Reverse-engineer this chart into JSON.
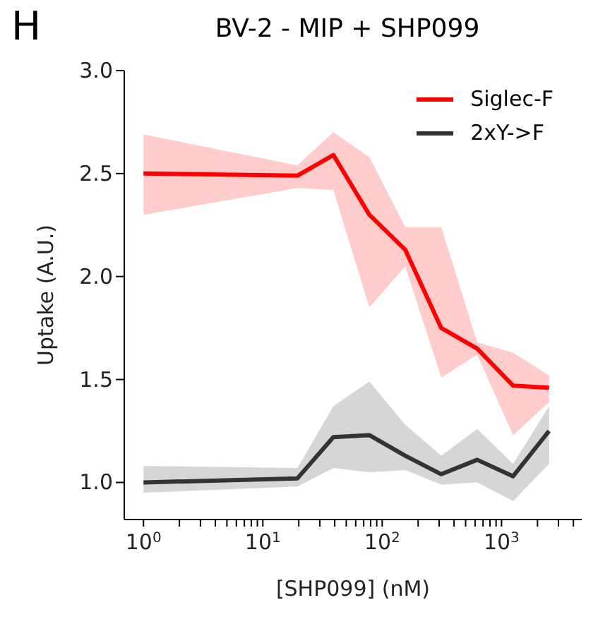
{
  "chart_data": {
    "type": "line",
    "title": "BV-2 - MIP + SHP099",
    "xlabel": "[SHP099] (nM)",
    "ylabel": "Uptake (A.U.)",
    "annotations": [
      "H"
    ],
    "x": [
      1,
      19.5,
      39,
      78,
      156,
      312.5,
      625,
      1250,
      2500
    ],
    "series": [
      {
        "name": "Siglec-F",
        "color": "#ff0000",
        "values": [
          2.5,
          2.49,
          2.59,
          2.3,
          2.13,
          1.75,
          1.65,
          1.47,
          1.46
        ],
        "lower": [
          2.3,
          2.43,
          2.42,
          1.85,
          2.05,
          1.51,
          1.62,
          1.23,
          1.39
        ],
        "upper": [
          2.69,
          2.54,
          2.7,
          2.58,
          2.24,
          2.24,
          1.68,
          1.63,
          1.52
        ]
      },
      {
        "name": "2xY->F",
        "color": "#333333",
        "values": [
          1.0,
          1.02,
          1.22,
          1.23,
          1.13,
          1.04,
          1.11,
          1.03,
          1.25
        ],
        "lower": [
          0.95,
          0.98,
          1.07,
          1.05,
          1.06,
          0.99,
          1.0,
          0.91,
          1.09
        ],
        "upper": [
          1.08,
          1.07,
          1.37,
          1.49,
          1.28,
          1.13,
          1.26,
          1.09,
          1.37
        ]
      }
    ],
    "log": "x",
    "xlim": [
      0.69,
      4700
    ],
    "xticks": [
      {
        "value": 1,
        "label": "10$^{0}$"
      },
      {
        "value": 2,
        "label": null
      },
      {
        "value": 3,
        "label": null
      },
      {
        "value": 4,
        "label": null
      },
      {
        "value": 5,
        "label": null
      },
      {
        "value": 6,
        "label": null
      },
      {
        "value": 7,
        "label": null
      },
      {
        "value": 8,
        "label": null
      },
      {
        "value": 9,
        "label": null
      },
      {
        "value": 10,
        "label": "10$^{1}$"
      },
      {
        "value": 20,
        "label": null
      },
      {
        "value": 30,
        "label": null
      },
      {
        "value": 40,
        "label": null
      },
      {
        "value": 50,
        "label": null
      },
      {
        "value": 60,
        "label": null
      },
      {
        "value": 70,
        "label": null
      },
      {
        "value": 80,
        "label": null
      },
      {
        "value": 90,
        "label": null
      },
      {
        "value": 100,
        "label": "10$^{2}$"
      },
      {
        "value": 200,
        "label": null
      },
      {
        "value": 300,
        "label": null
      },
      {
        "value": 400,
        "label": null
      },
      {
        "value": 500,
        "label": null
      },
      {
        "value": 600,
        "label": null
      },
      {
        "value": 700,
        "label": null
      },
      {
        "value": 800,
        "label": null
      },
      {
        "value": 900,
        "label": null
      },
      {
        "value": 1000,
        "label": "10$^{3}$"
      },
      {
        "value": 2000,
        "label": null
      },
      {
        "value": 3000,
        "label": null
      },
      {
        "value": 4000,
        "label": null
      }
    ],
    "ylim": [
      0.82,
      3.0
    ],
    "yticks": [
      {
        "value": 1,
        "label": "1.0"
      },
      1.5,
      {
        "value": 2,
        "label": "2.0"
      },
      2.5,
      {
        "value": 3,
        "label": "3.0"
      }
    ],
    "grid": false,
    "legend": "top right"
  }
}
